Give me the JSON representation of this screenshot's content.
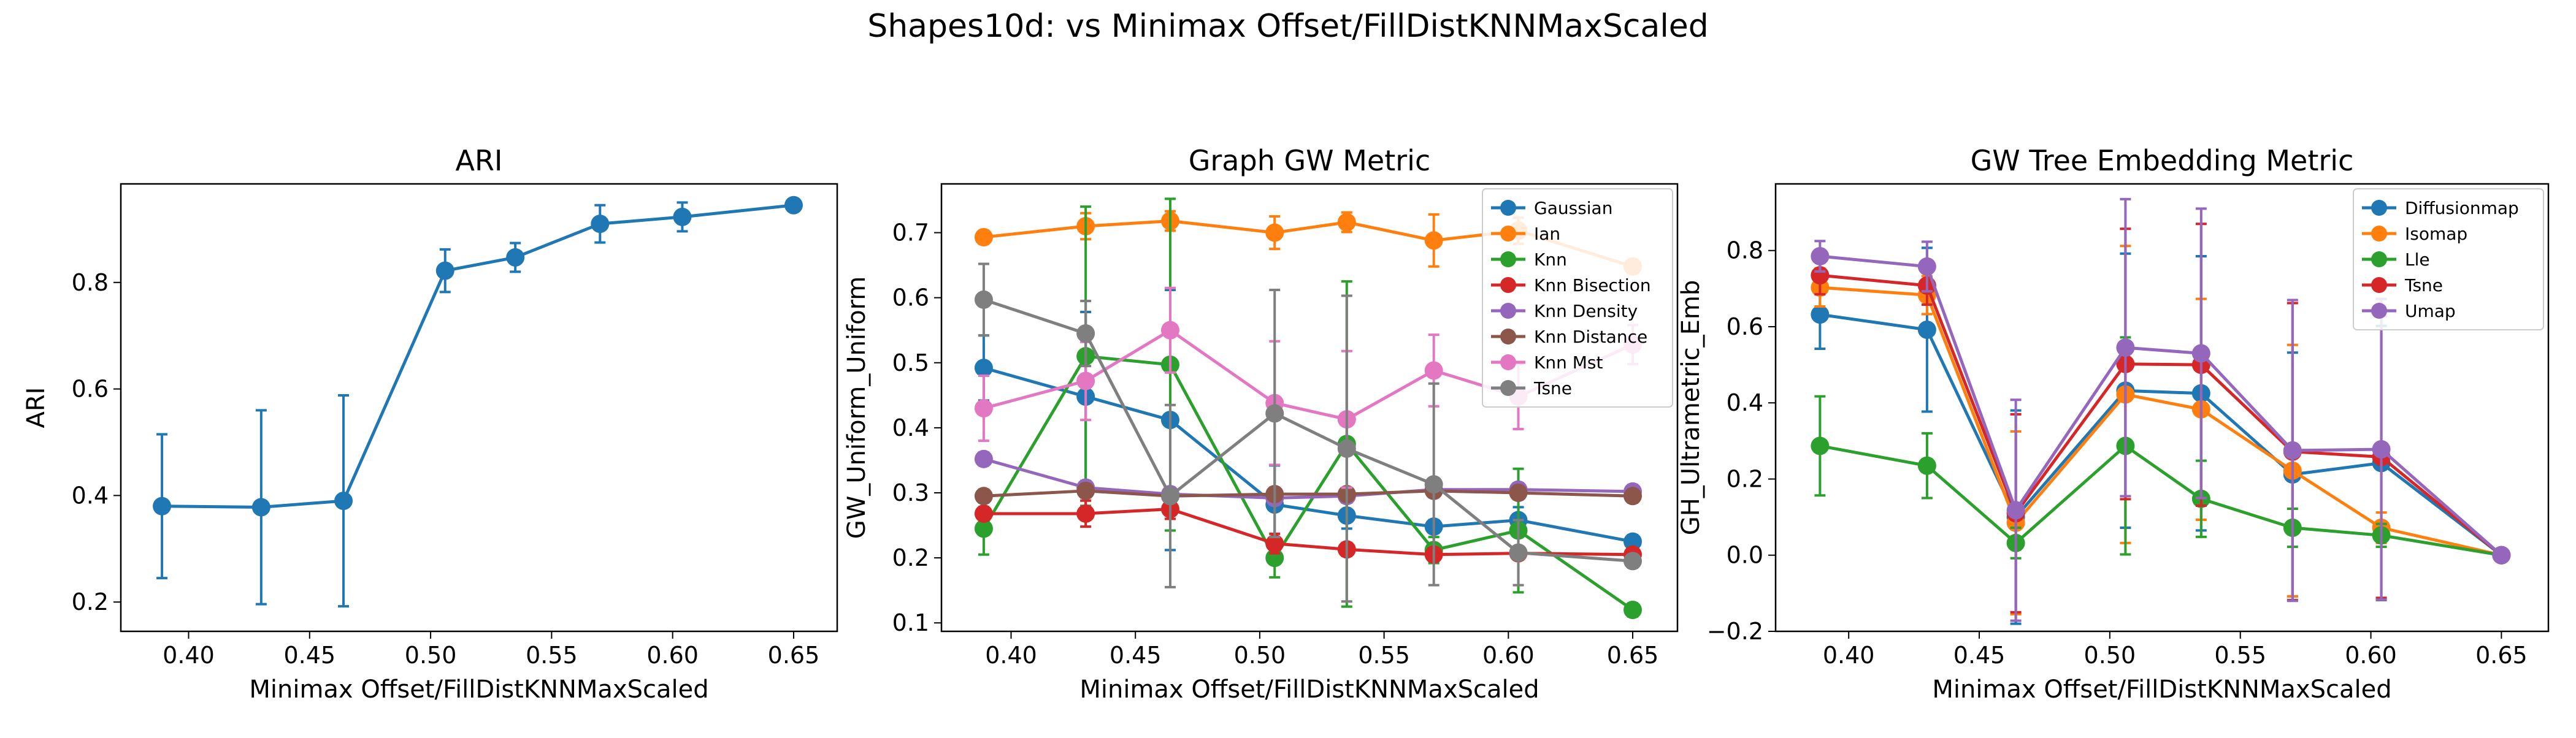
{
  "suptitle": "Shapes10d: vs Minimax Offset/FillDistKNNMaxScaled",
  "colors": {
    "blue": "#1f77b4",
    "orange": "#ff7f0e",
    "green": "#2ca02c",
    "red": "#d62728",
    "purple": "#9467bd",
    "brown": "#8c564b",
    "pink": "#e377c2",
    "gray": "#7f7f7f"
  },
  "chart_data": [
    {
      "type": "line",
      "title": "ARI",
      "xlabel": "Minimax Offset/FillDistKNNMaxScaled",
      "ylabel": "ARI",
      "xlim": [
        0.372,
        0.668
      ],
      "ylim": [
        0.145,
        0.985
      ],
      "xticks": [
        0.4,
        0.45,
        0.5,
        0.55,
        0.6,
        0.65
      ],
      "xtick_labels": [
        "0.40",
        "0.45",
        "0.50",
        "0.55",
        "0.60",
        "0.65"
      ],
      "yticks": [
        0.2,
        0.4,
        0.6,
        0.8
      ],
      "ytick_labels": [
        "0.2",
        "0.4",
        "0.6",
        "0.8"
      ],
      "x": [
        0.389,
        0.43,
        0.464,
        0.506,
        0.535,
        0.57,
        0.604,
        0.65
      ],
      "legend": null,
      "series": [
        {
          "color": "blue",
          "values": [
            0.38,
            0.378,
            0.39,
            0.822,
            0.847,
            0.91,
            0.923,
            0.945
          ],
          "errors": [
            0.135,
            0.182,
            0.198,
            0.04,
            0.027,
            0.035,
            0.027,
            0.0
          ]
        }
      ]
    },
    {
      "type": "line",
      "title": "Graph GW Metric",
      "xlabel": "Minimax Offset/FillDistKNNMaxScaled",
      "ylabel": "GW_Uniform_Uniform",
      "xlim": [
        0.372,
        0.668
      ],
      "ylim": [
        0.087,
        0.775
      ],
      "xticks": [
        0.4,
        0.45,
        0.5,
        0.55,
        0.6,
        0.65
      ],
      "xtick_labels": [
        "0.40",
        "0.45",
        "0.50",
        "0.55",
        "0.60",
        "0.65"
      ],
      "yticks": [
        0.1,
        0.2,
        0.3,
        0.4,
        0.5,
        0.6,
        0.7
      ],
      "ytick_labels": [
        "0.1",
        "0.2",
        "0.3",
        "0.4",
        "0.5",
        "0.6",
        "0.7"
      ],
      "x": [
        0.389,
        0.43,
        0.464,
        0.506,
        0.535,
        0.57,
        0.604,
        0.65
      ],
      "legend": "top-right",
      "series": [
        {
          "name": "Gaussian",
          "color": "blue",
          "values": [
            0.492,
            0.448,
            0.412,
            0.282,
            0.265,
            0.248,
            0.258,
            0.225
          ],
          "errors": [
            0.05,
            0.13,
            0.2,
            0.06,
            0.02,
            0.01,
            0.02,
            0.01
          ]
        },
        {
          "name": "Ian",
          "color": "orange",
          "values": [
            0.693,
            0.71,
            0.718,
            0.7,
            0.716,
            0.688,
            0.703,
            0.648
          ],
          "errors": [
            0.01,
            0.02,
            0.015,
            0.025,
            0.015,
            0.04,
            0.02,
            0.01
          ]
        },
        {
          "name": "Knn",
          "color": "green",
          "values": [
            0.245,
            0.51,
            0.497,
            0.2,
            0.375,
            0.212,
            0.242,
            0.12
          ],
          "errors": [
            0.04,
            0.23,
            0.255,
            0.03,
            0.25,
            0.02,
            0.095,
            0.01
          ]
        },
        {
          "name": "Knn Bisection",
          "color": "red",
          "values": [
            0.268,
            0.268,
            0.275,
            0.222,
            0.213,
            0.205,
            0.207,
            0.205
          ],
          "errors": [
            0.01,
            0.02,
            0.015,
            0.015,
            0.01,
            0.01,
            0.01,
            0.01
          ]
        },
        {
          "name": "Knn Density",
          "color": "purple",
          "values": [
            0.352,
            0.308,
            0.298,
            0.292,
            0.295,
            0.305,
            0.305,
            0.302
          ],
          "errors": [
            0.01,
            0.01,
            0.01,
            0.01,
            0.01,
            0.01,
            0.01,
            0.01
          ]
        },
        {
          "name": "Knn Distance",
          "color": "brown",
          "values": [
            0.295,
            0.303,
            0.295,
            0.298,
            0.298,
            0.303,
            0.3,
            0.295
          ],
          "errors": [
            0.01,
            0.01,
            0.01,
            0.01,
            0.01,
            0.01,
            0.01,
            0.01
          ]
        },
        {
          "name": "Knn Mst",
          "color": "pink",
          "values": [
            0.43,
            0.472,
            0.55,
            0.438,
            0.413,
            0.488,
            0.448,
            0.528
          ],
          "errors": [
            0.05,
            0.06,
            0.065,
            0.095,
            0.105,
            0.055,
            0.05,
            0.03
          ]
        },
        {
          "name": "Tsne",
          "color": "gray",
          "values": [
            0.597,
            0.545,
            0.295,
            0.422,
            0.368,
            0.313,
            0.208,
            0.195
          ],
          "errors": [
            0.055,
            0.05,
            0.14,
            0.19,
            0.235,
            0.155,
            0.05,
            0.01
          ]
        }
      ]
    },
    {
      "type": "line",
      "title": "GW Tree Embedding Metric",
      "xlabel": "Minimax Offset/FillDistKNNMaxScaled",
      "ylabel": "GH_Ultrametric_Emb",
      "xlim": [
        0.372,
        0.668
      ],
      "ylim": [
        -0.2,
        0.975
      ],
      "xticks": [
        0.4,
        0.45,
        0.5,
        0.55,
        0.6,
        0.65
      ],
      "xtick_labels": [
        "0.40",
        "0.45",
        "0.50",
        "0.55",
        "0.60",
        "0.65"
      ],
      "yticks": [
        -0.2,
        0.0,
        0.2,
        0.4,
        0.6,
        0.8
      ],
      "ytick_labels": [
        "−0.2",
        "0.0",
        "0.2",
        "0.4",
        "0.6",
        "0.8"
      ],
      "x": [
        0.389,
        0.43,
        0.464,
        0.506,
        0.535,
        0.57,
        0.604,
        0.65
      ],
      "legend": "top-right",
      "series": [
        {
          "name": "Diffusionmap",
          "color": "blue",
          "values": [
            0.632,
            0.592,
            0.1,
            0.432,
            0.425,
            0.212,
            0.242,
            0.0
          ],
          "errors": [
            0.09,
            0.215,
            0.28,
            0.36,
            0.36,
            0.32,
            0.36,
            0.0
          ]
        },
        {
          "name": "Isomap",
          "color": "orange",
          "values": [
            0.703,
            0.683,
            0.085,
            0.422,
            0.383,
            0.222,
            0.072,
            0.0
          ],
          "errors": [
            0.05,
            0.05,
            0.24,
            0.39,
            0.29,
            0.33,
            0.04,
            0.0
          ]
        },
        {
          "name": "Lle",
          "color": "green",
          "values": [
            0.287,
            0.235,
            0.032,
            0.287,
            0.148,
            0.072,
            0.052,
            0.0
          ],
          "errors": [
            0.13,
            0.085,
            0.04,
            0.285,
            0.1,
            0.05,
            0.03,
            0.0
          ]
        },
        {
          "name": "Tsne",
          "color": "red",
          "values": [
            0.735,
            0.708,
            0.11,
            0.502,
            0.5,
            0.272,
            0.258,
            0.0
          ],
          "errors": [
            0.05,
            0.05,
            0.26,
            0.355,
            0.37,
            0.39,
            0.37,
            0.0
          ]
        },
        {
          "name": "Umap",
          "color": "purple",
          "values": [
            0.785,
            0.758,
            0.118,
            0.545,
            0.53,
            0.275,
            0.278,
            0.0
          ],
          "errors": [
            0.04,
            0.065,
            0.29,
            0.39,
            0.38,
            0.395,
            0.395,
            0.0
          ]
        }
      ]
    }
  ]
}
